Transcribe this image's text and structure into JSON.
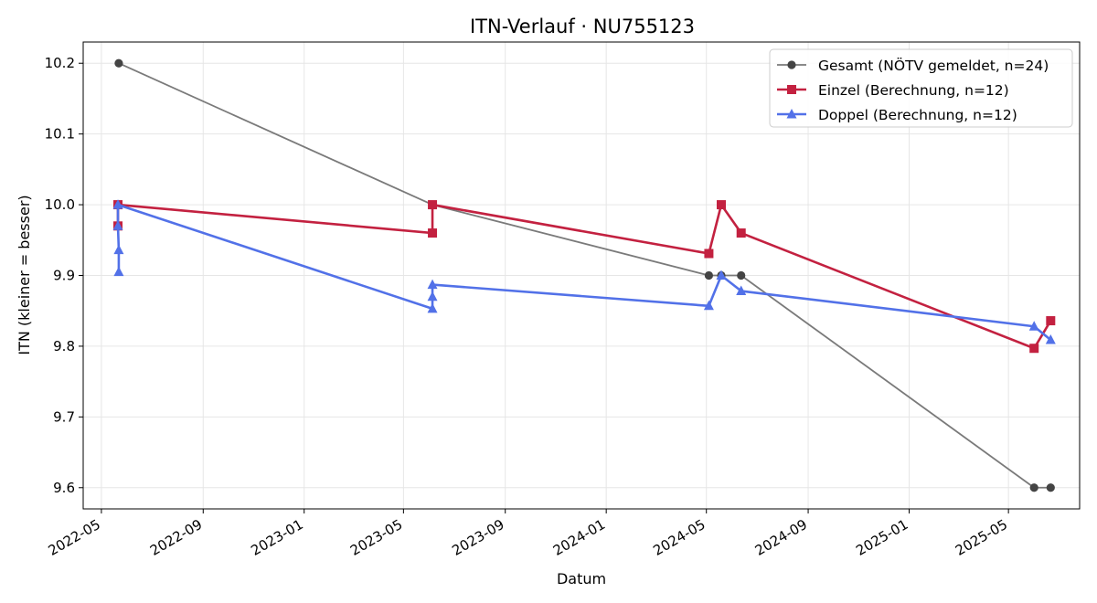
{
  "chart_data": {
    "type": "line",
    "title": "ITN-Verlauf · NU755123",
    "xlabel": "Datum",
    "ylabel": "ITN  (kleiner = besser)",
    "x_type": "date",
    "xlim": [
      "2022-04-09",
      "2025-07-26"
    ],
    "ylim": [
      9.57,
      10.23
    ],
    "x_ticks": [
      "2022-05-01",
      "2022-09-01",
      "2023-01-01",
      "2023-05-01",
      "2023-09-01",
      "2024-01-01",
      "2024-05-01",
      "2024-09-01",
      "2025-01-01",
      "2025-05-01"
    ],
    "x_tick_labels": [
      "2022-05",
      "2022-09",
      "2023-01",
      "2023-05",
      "2023-09",
      "2024-01",
      "2024-05",
      "2024-09",
      "2025-01",
      "2025-05"
    ],
    "y_ticks": [
      9.6,
      9.7,
      9.8,
      9.9,
      10.0,
      10.1,
      10.2
    ],
    "y_tick_labels": [
      "9.6",
      "9.7",
      "9.8",
      "9.9",
      "10.0",
      "10.1",
      "10.2"
    ],
    "grid": true,
    "legend_position": "top-right",
    "series": [
      {
        "name": "Gesamt (NÖTV gemeldet, n=24)",
        "color": "#7a7a7a",
        "marker_color": "#444444",
        "marker": "circle",
        "points": [
          {
            "x": "2022-05-22",
            "y": 10.2
          },
          {
            "x": "2023-06-05",
            "y": 10.0
          },
          {
            "x": "2024-05-04",
            "y": 9.9
          },
          {
            "x": "2024-05-19",
            "y": 9.9
          },
          {
            "x": "2024-06-12",
            "y": 9.9
          },
          {
            "x": "2025-06-01",
            "y": 9.6
          },
          {
            "x": "2025-06-21",
            "y": 9.6
          }
        ]
      },
      {
        "name": "Einzel (Berechnung, n=12)",
        "color": "#c32140",
        "marker_color": "#c32140",
        "marker": "square",
        "points": [
          {
            "x": "2022-05-21",
            "y": 9.97
          },
          {
            "x": "2022-05-21",
            "y": 10.0
          },
          {
            "x": "2023-06-05",
            "y": 9.96
          },
          {
            "x": "2023-06-05",
            "y": 10.0
          },
          {
            "x": "2024-05-04",
            "y": 9.931
          },
          {
            "x": "2024-05-19",
            "y": 10.0
          },
          {
            "x": "2024-06-12",
            "y": 9.96
          },
          {
            "x": "2025-06-01",
            "y": 9.797
          },
          {
            "x": "2025-06-21",
            "y": 9.836
          }
        ]
      },
      {
        "name": "Doppel (Berechnung, n=12)",
        "color": "#5271e8",
        "marker_color": "#5271e8",
        "marker": "triangle",
        "points": [
          {
            "x": "2022-05-22",
            "y": 9.905
          },
          {
            "x": "2022-05-22",
            "y": 9.936
          },
          {
            "x": "2022-05-21",
            "y": 9.97
          },
          {
            "x": "2022-05-21",
            "y": 10.0
          },
          {
            "x": "2023-06-05",
            "y": 9.853
          },
          {
            "x": "2023-06-05",
            "y": 9.87
          },
          {
            "x": "2023-06-05",
            "y": 9.887
          },
          {
            "x": "2024-05-04",
            "y": 9.857
          },
          {
            "x": "2024-05-19",
            "y": 9.9
          },
          {
            "x": "2024-06-12",
            "y": 9.878
          },
          {
            "x": "2025-06-01",
            "y": 9.828
          },
          {
            "x": "2025-06-21",
            "y": 9.809
          }
        ]
      }
    ]
  }
}
